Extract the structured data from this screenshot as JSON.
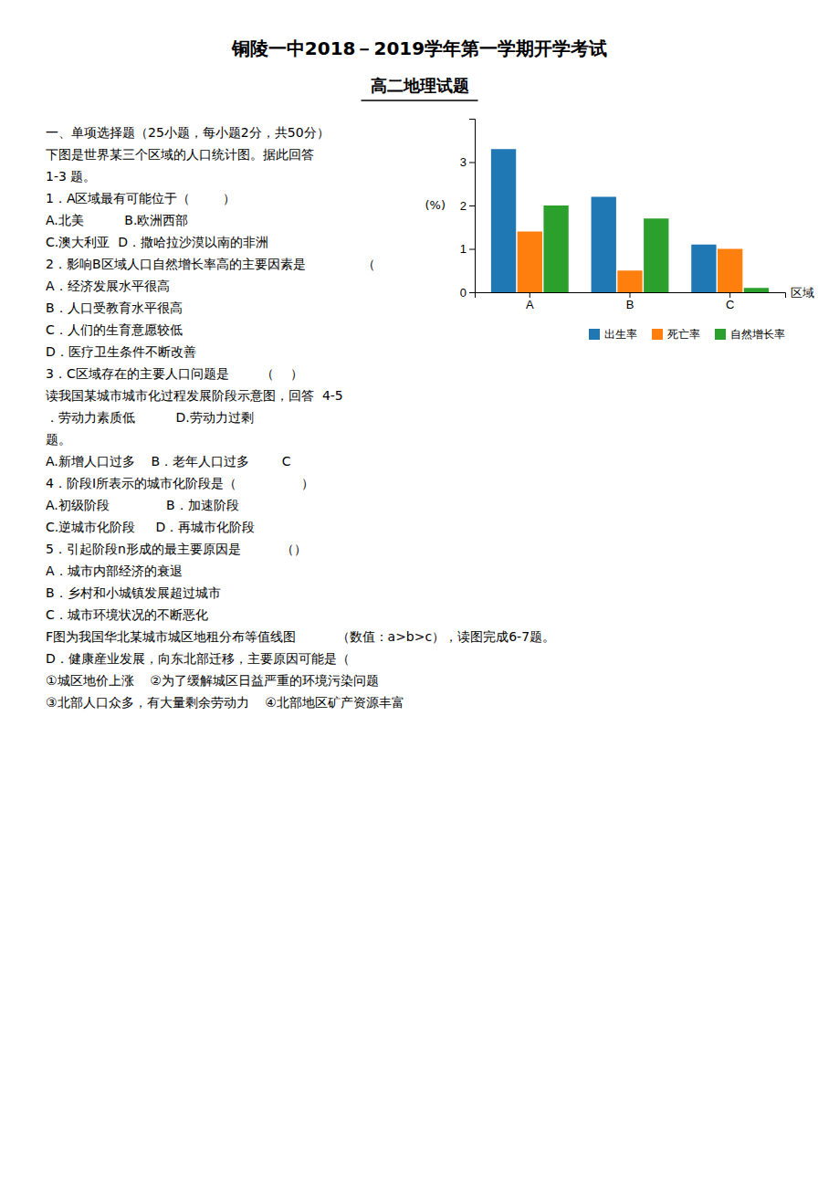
{
  "chart_data": {
    "type": "bar",
    "title": "铜陵一中2018－2019学年第一学期开学考试",
    "subtitle": "高二地理试题",
    "annotations": [
      "一、单项选择题（25小题，每小题2分，共50分）",
      "下图是世界某三个区域的人口统计图。据此回答",
      "1-3 题。",
      "1．A区域最有可能位于（        ）",
      "A.北美          B.欧洲西部",
      "C.澳大利亚  D．撒哈拉沙漠以南的非洲",
      "2．影响B区域人口自然增长率高的主要因素是              （",
      "A．经济发展水平很高",
      "B．人口受教育水平很高",
      "C．人们的生育意愿较低",
      "D．医疗卫生条件不断改善",
      "3．C区域存在的主要人口问题是        （    ）",
      "读我国某城市城市化过程发展阶段示意图，回答  4-5",
      "．劳动力素质低          D.劳动力过剩",
      "题。",
      "A.新增人口过多    B．老年人口过多        C",
      "4．阶段I所表示的城市化阶段是（                ）",
      "A.初级阶段              B．加速阶段",
      "C.逆城市化阶段     D．再城市化阶段",
      "5．引起阶段n形成的最主要原因是          （）",
      "A．城市内部经济的衰退",
      "B．乡村和小城镇发展超过城市",
      "C．城市环境状况的不断恶化",
      "F图为我国华北某城市城区地租分布等值线图          （数值：a>b>c），读图完成6-7题。",
      "D．健康産业发展，向东北部迁移，主要原因可能是（",
      "①城区地价上涨    ②为了缓解城区日益严重的环境污染问题",
      "③北部人口众多，有大量剩余劳动力    ④北部地区矿产资源丰富"
    ],
    "xlabel": "区域",
    "ylabel": "(%)",
    "categories": [
      "A",
      "B",
      "C"
    ],
    "series": [
      {
        "name": "出生率",
        "values": [
          3.3,
          2.2,
          1.1
        ]
      },
      {
        "name": "死亡率",
        "values": [
          1.4,
          0.5,
          1.0
        ]
      },
      {
        "name": "自然增长率",
        "values": [
          2.0,
          1.7,
          0.1
        ]
      }
    ],
    "ylim": [
      0,
      4
    ],
    "yticks": [
      0,
      1,
      2,
      3
    ],
    "grid": false,
    "legend": "lower right"
  }
}
